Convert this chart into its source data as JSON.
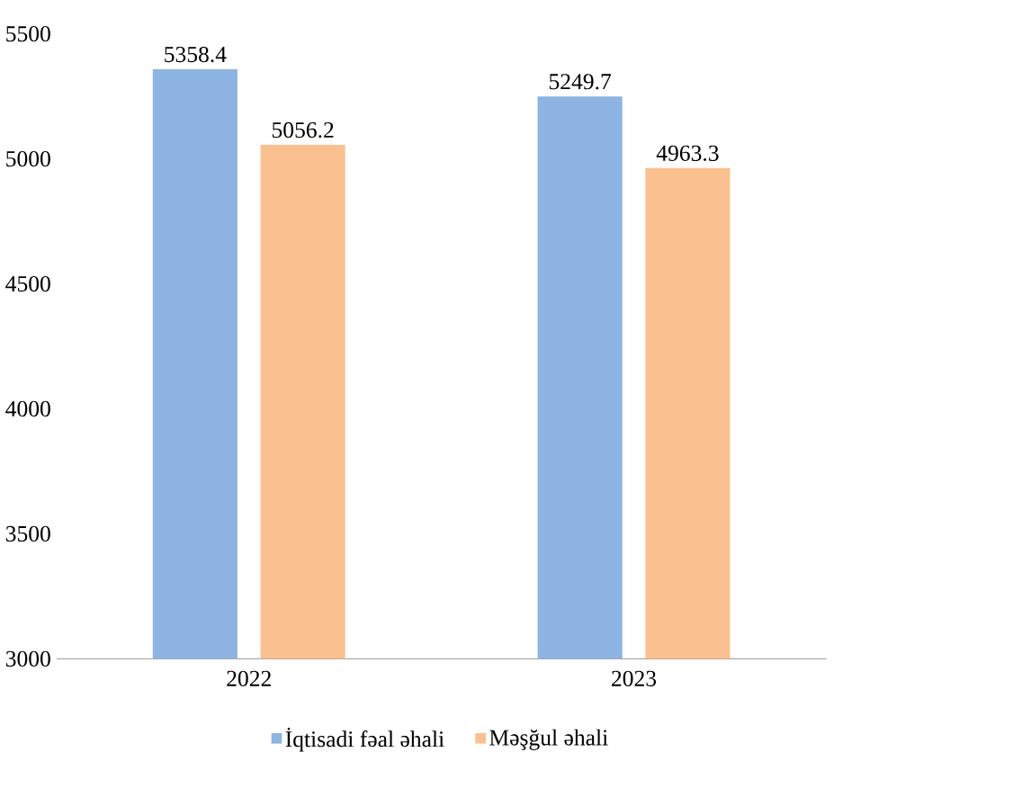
{
  "chart_data": {
    "type": "bar",
    "categories": [
      "2022",
      "2023"
    ],
    "series": [
      {
        "name": "İqtisadi fəal əhali",
        "color": "#8db4e2",
        "values": [
          5358.4,
          5249.7
        ]
      },
      {
        "name": "Məşğul əhali",
        "color": "#fac090",
        "values": [
          5056.2,
          4963.3
        ]
      }
    ],
    "ylim": [
      3000,
      5500
    ],
    "yticks": [
      3000,
      3500,
      4000,
      4500,
      5000,
      5500
    ],
    "data_labels": true,
    "legend": "bottom",
    "grid": false
  }
}
